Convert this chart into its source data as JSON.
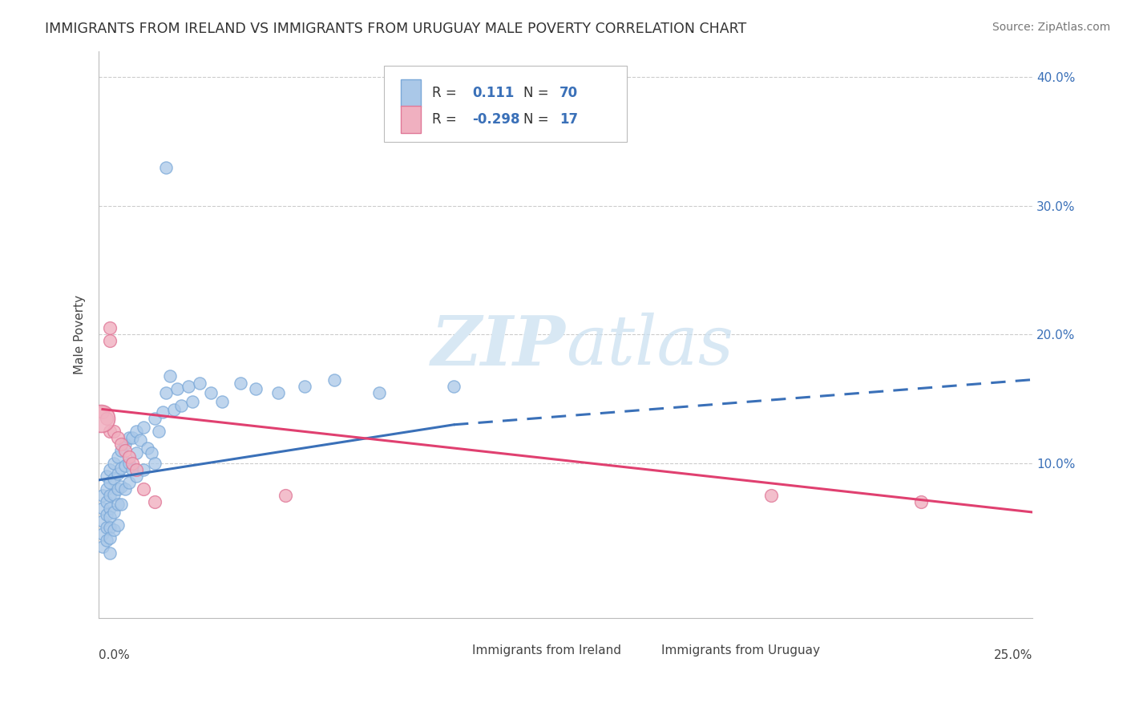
{
  "title": "IMMIGRANTS FROM IRELAND VS IMMIGRANTS FROM URUGUAY MALE POVERTY CORRELATION CHART",
  "source": "Source: ZipAtlas.com",
  "ylabel": "Male Poverty",
  "xlim": [
    0.0,
    0.25
  ],
  "ylim": [
    -0.02,
    0.42
  ],
  "ireland_color": "#aac8e8",
  "ireland_edge_color": "#7aA8d8",
  "uruguay_color": "#f0b0c0",
  "uruguay_edge_color": "#e07898",
  "trend_ireland_color": "#3a70b8",
  "trend_uruguay_color": "#e04070",
  "legend_text_color": "#3a70b8",
  "watermark_color": "#d8e8f4",
  "legend_label_ireland": "Immigrants from Ireland",
  "legend_label_uruguay": "Immigrants from Uruguay",
  "ireland_R": 0.111,
  "ireland_N": 70,
  "uruguay_R": -0.298,
  "uruguay_N": 17,
  "ireland_x": [
    0.001,
    0.001,
    0.001,
    0.001,
    0.001,
    0.002,
    0.002,
    0.002,
    0.002,
    0.002,
    0.002,
    0.003,
    0.003,
    0.003,
    0.003,
    0.003,
    0.003,
    0.003,
    0.003,
    0.004,
    0.004,
    0.004,
    0.004,
    0.004,
    0.005,
    0.005,
    0.005,
    0.005,
    0.005,
    0.006,
    0.006,
    0.006,
    0.006,
    0.007,
    0.007,
    0.007,
    0.008,
    0.008,
    0.008,
    0.009,
    0.009,
    0.01,
    0.01,
    0.01,
    0.011,
    0.012,
    0.012,
    0.013,
    0.014,
    0.015,
    0.015,
    0.016,
    0.017,
    0.018,
    0.019,
    0.02,
    0.021,
    0.022,
    0.024,
    0.025,
    0.027,
    0.03,
    0.033,
    0.038,
    0.042,
    0.048,
    0.055,
    0.063,
    0.075,
    0.095
  ],
  "ireland_y": [
    0.075,
    0.065,
    0.055,
    0.045,
    0.035,
    0.09,
    0.08,
    0.07,
    0.06,
    0.05,
    0.04,
    0.095,
    0.085,
    0.075,
    0.065,
    0.058,
    0.05,
    0.042,
    0.03,
    0.1,
    0.088,
    0.076,
    0.062,
    0.048,
    0.105,
    0.092,
    0.08,
    0.068,
    0.052,
    0.11,
    0.096,
    0.082,
    0.068,
    0.115,
    0.098,
    0.08,
    0.12,
    0.1,
    0.085,
    0.12,
    0.095,
    0.125,
    0.108,
    0.09,
    0.118,
    0.128,
    0.095,
    0.112,
    0.108,
    0.135,
    0.1,
    0.125,
    0.14,
    0.155,
    0.168,
    0.142,
    0.158,
    0.145,
    0.16,
    0.148,
    0.162,
    0.155,
    0.148,
    0.162,
    0.158,
    0.155,
    0.16,
    0.165,
    0.155,
    0.16
  ],
  "ireland_outlier_x": [
    0.018
  ],
  "ireland_outlier_y": [
    0.33
  ],
  "uruguay_x": [
    0.001,
    0.002,
    0.003,
    0.003,
    0.003,
    0.004,
    0.005,
    0.006,
    0.007,
    0.008,
    0.009,
    0.01,
    0.012,
    0.015,
    0.05,
    0.18,
    0.22
  ],
  "uruguay_y": [
    0.14,
    0.135,
    0.205,
    0.195,
    0.125,
    0.125,
    0.12,
    0.115,
    0.11,
    0.105,
    0.1,
    0.095,
    0.08,
    0.07,
    0.075,
    0.075,
    0.07
  ],
  "ireland_trend_x0": 0.0,
  "ireland_trend_x1": 0.095,
  "ireland_trend_dash_x0": 0.095,
  "ireland_trend_dash_x1": 0.25,
  "ireland_trend_y0": 0.087,
  "ireland_trend_y1": 0.13,
  "ireland_trend_y_dash1": 0.165,
  "uruguay_trend_x0": 0.001,
  "uruguay_trend_x1": 0.25,
  "uruguay_trend_y0": 0.142,
  "uruguay_trend_y1": 0.062
}
